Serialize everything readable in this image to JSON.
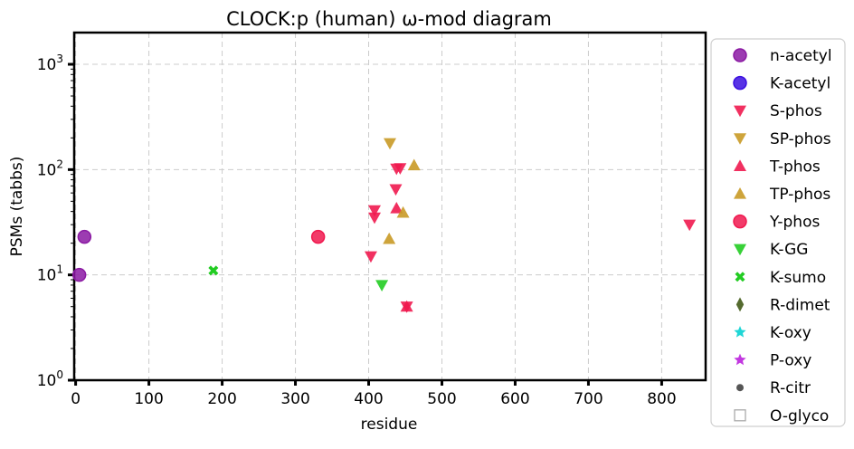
{
  "chart_data": {
    "type": "scatter",
    "title": "CLOCK:p (human) ω-mod diagram",
    "xlabel": "residue",
    "ylabel": "PSMs (tabbs)",
    "xlim": [
      -2,
      860
    ],
    "ylim": [
      1,
      2000
    ],
    "y_scale": "log",
    "grid": true,
    "legend_position": "outside-right",
    "x_ticks": [
      {
        "value": 0,
        "label": "0"
      },
      {
        "value": 100,
        "label": "100"
      },
      {
        "value": 200,
        "label": "200"
      },
      {
        "value": 300,
        "label": "300"
      },
      {
        "value": 400,
        "label": "400"
      },
      {
        "value": 500,
        "label": "500"
      },
      {
        "value": 600,
        "label": "600"
      },
      {
        "value": 700,
        "label": "700"
      },
      {
        "value": 800,
        "label": "800"
      }
    ],
    "y_ticks": [
      {
        "value": 1,
        "base": "10",
        "exp": "0"
      },
      {
        "value": 10,
        "base": "10",
        "exp": "1"
      },
      {
        "value": 100,
        "base": "10",
        "exp": "2"
      },
      {
        "value": 1000,
        "base": "10",
        "exp": "3"
      }
    ],
    "series": [
      {
        "name": "n-acetyl",
        "marker": "circle",
        "color": "#8b1aa3",
        "points": [
          [
            12,
            23
          ],
          [
            5,
            10
          ]
        ]
      },
      {
        "name": "K-acetyl",
        "marker": "circle",
        "color": "#3b0fe0",
        "points": []
      },
      {
        "name": "S-phos",
        "marker": "triangle-down",
        "color": "#f0194f",
        "points": [
          [
            403,
            15
          ],
          [
            408,
            35
          ],
          [
            437,
            65
          ],
          [
            443,
            103
          ],
          [
            838,
            30
          ],
          [
            408,
            41
          ],
          [
            452,
            5
          ],
          [
            438,
            102
          ]
        ]
      },
      {
        "name": "SP-phos",
        "marker": "triangle-down",
        "color": "#c99a26",
        "points": [
          [
            429,
            178
          ]
        ]
      },
      {
        "name": "T-phos",
        "marker": "triangle-up",
        "color": "#f0194f",
        "points": [
          [
            452,
            5
          ],
          [
            438,
            43
          ]
        ]
      },
      {
        "name": "TP-phos",
        "marker": "triangle-up",
        "color": "#c99a26",
        "points": [
          [
            462,
            110
          ],
          [
            447,
            39
          ],
          [
            428,
            22
          ]
        ]
      },
      {
        "name": "Y-phos",
        "marker": "circle",
        "color": "#f0194f",
        "points": [
          [
            331,
            23
          ]
        ]
      },
      {
        "name": "K-GG",
        "marker": "triangle-down",
        "color": "#22cc22",
        "points": [
          [
            418,
            8
          ]
        ]
      },
      {
        "name": "K-sumo",
        "marker": "x-cross",
        "color": "#22cc22",
        "points": [
          [
            188,
            11
          ]
        ]
      },
      {
        "name": "R-dimet",
        "marker": "diamond",
        "color": "#556b2f",
        "points": []
      },
      {
        "name": "K-oxy",
        "marker": "star",
        "color": "#1fd6d6",
        "points": []
      },
      {
        "name": "P-oxy",
        "marker": "star",
        "color": "#c238e0",
        "points": []
      },
      {
        "name": "R-citr",
        "marker": "dot",
        "color": "#555555",
        "points": []
      },
      {
        "name": "O-glyco",
        "marker": "square-open",
        "color": "#aaaaaa",
        "points": []
      }
    ]
  }
}
